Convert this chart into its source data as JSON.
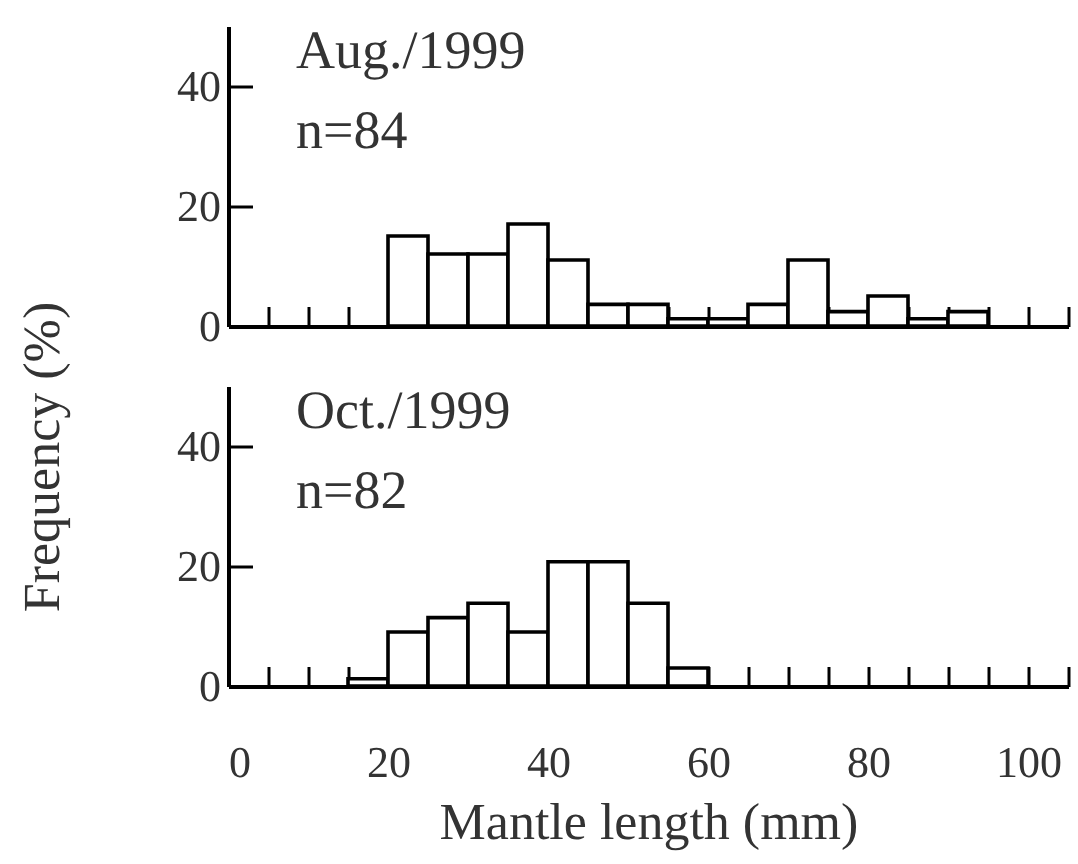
{
  "chart_data": [
    {
      "type": "histogram",
      "ylabel": "Frequency (%)",
      "annotations": [
        "Aug./1999",
        "n=84"
      ],
      "bins": [
        20,
        25,
        30,
        35,
        40,
        45,
        50,
        55,
        60,
        65,
        70,
        75,
        80,
        85,
        90,
        95
      ],
      "values": [
        15,
        12,
        12,
        17,
        11,
        3.6,
        3.6,
        1.2,
        1.2,
        3.6,
        11,
        2.4,
        5,
        1.2,
        2.4
      ],
      "xlim": [
        0,
        105
      ],
      "ylim": [
        0,
        50
      ],
      "yticks": [
        0,
        20,
        40
      ],
      "tick_labels": "y",
      "xticks": [
        0,
        {
          "value": 5,
          "label": null
        },
        10,
        {
          "value": 15,
          "label": null
        },
        20,
        {
          "value": 25,
          "label": null
        },
        30,
        {
          "value": 35,
          "label": null
        },
        40,
        {
          "value": 45,
          "label": null
        },
        50,
        {
          "value": 55,
          "label": null
        },
        60,
        {
          "value": 65,
          "label": null
        },
        70,
        {
          "value": 75,
          "label": null
        },
        80,
        {
          "value": 85,
          "label": null
        },
        90,
        {
          "value": 95,
          "label": null
        },
        100,
        {
          "value": 105,
          "label": null
        }
      ]
    },
    {
      "type": "histogram",
      "xlabel": "Mantle length (mm)",
      "annotations": [
        "Oct./1999",
        "n=82"
      ],
      "bins": [
        15,
        20,
        25,
        30,
        35,
        40,
        45,
        50,
        55,
        60
      ],
      "values": [
        1.2,
        9,
        11.4,
        13.8,
        9,
        20.7,
        20.7,
        13.8,
        3
      ],
      "xlim": [
        0,
        105
      ],
      "ylim": [
        0,
        50
      ],
      "yticks": [
        0,
        20,
        40
      ],
      "xticks": [
        0,
        {
          "value": 5,
          "label": null
        },
        {
          "value": 10,
          "label": null
        },
        {
          "value": 15,
          "label": null
        },
        20,
        {
          "value": 25,
          "label": null
        },
        {
          "value": 30,
          "label": null
        },
        {
          "value": 35,
          "label": null
        },
        40,
        {
          "value": 45,
          "label": null
        },
        {
          "value": 50,
          "label": null
        },
        {
          "value": 55,
          "label": null
        },
        60,
        {
          "value": 65,
          "label": null
        },
        {
          "value": 70,
          "label": null
        },
        {
          "value": 75,
          "label": null
        },
        80,
        {
          "value": 85,
          "label": null
        },
        {
          "value": 90,
          "label": null
        },
        {
          "value": 95,
          "label": null
        },
        100,
        {
          "value": 105,
          "label": null
        }
      ]
    }
  ]
}
